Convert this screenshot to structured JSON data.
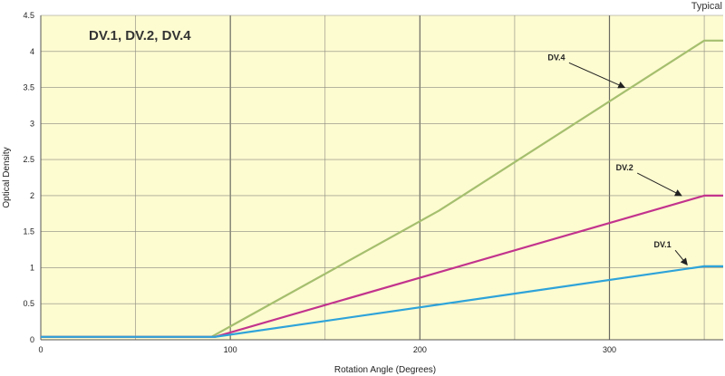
{
  "corner_note": "Typical",
  "chart_data": {
    "type": "line",
    "title": "DV.1, DV.2, DV.4",
    "xlabel": "Rotation Angle (Degrees)",
    "ylabel": "Optical Density",
    "xlim": [
      0,
      360
    ],
    "ylim": [
      0,
      4.5
    ],
    "x_ticks": [
      0,
      100,
      200,
      300
    ],
    "y_ticks": [
      0,
      0.5,
      1,
      1.5,
      2,
      2.5,
      3,
      3.5,
      4,
      4.5
    ],
    "x_tick_labels": [
      "0",
      "100",
      "200",
      "300"
    ],
    "y_tick_labels": [
      "0",
      "0.5",
      "1",
      "1.5",
      "2",
      "2.5",
      "3",
      "3.5",
      "4",
      "4.5"
    ],
    "grid": true,
    "background_color": "#fdfbd0",
    "series": [
      {
        "name": "DV.4",
        "color": "#a5bf6e",
        "x": [
          0,
          90,
          210,
          350,
          360
        ],
        "y": [
          0.04,
          0.04,
          1.79,
          4.15,
          4.15
        ],
        "label_at": [
          272,
          3.88
        ],
        "arrow_to": [
          308,
          3.5
        ]
      },
      {
        "name": "DV.2",
        "color": "#c2338d",
        "x": [
          0,
          92,
          350,
          360
        ],
        "y": [
          0.04,
          0.04,
          2.0,
          2.0
        ],
        "label_at": [
          308,
          2.35
        ],
        "arrow_to": [
          338,
          2.0
        ]
      },
      {
        "name": "DV.1",
        "color": "#2ea3d9",
        "x": [
          0,
          92,
          350,
          360
        ],
        "y": [
          0.04,
          0.04,
          1.02,
          1.02
        ],
        "label_at": [
          328,
          1.28
        ],
        "arrow_to": [
          341,
          1.04
        ]
      }
    ]
  }
}
